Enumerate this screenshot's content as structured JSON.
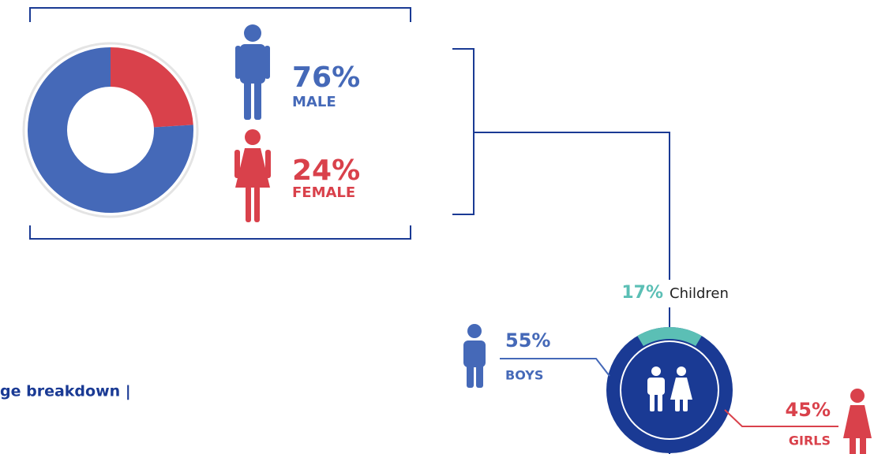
{
  "chart_data": [
    {
      "type": "pie",
      "categories": [
        "MALE",
        "FEMALE"
      ],
      "values": [
        76,
        24
      ],
      "value_labels": [
        "76%",
        "24%"
      ],
      "colors": [
        "#4569b8",
        "#d9414b"
      ]
    },
    {
      "type": "ring",
      "name": "Children",
      "value": 17,
      "value_label": "17%",
      "color": "#5bbfb5"
    },
    {
      "type": "callout",
      "categories": [
        "BOYS",
        "GIRLS"
      ],
      "values": [
        55,
        45
      ],
      "value_labels": [
        "55%",
        "45%"
      ],
      "colors": [
        "#4569b8",
        "#d9414b"
      ]
    }
  ],
  "caption": "ge breakdown |"
}
